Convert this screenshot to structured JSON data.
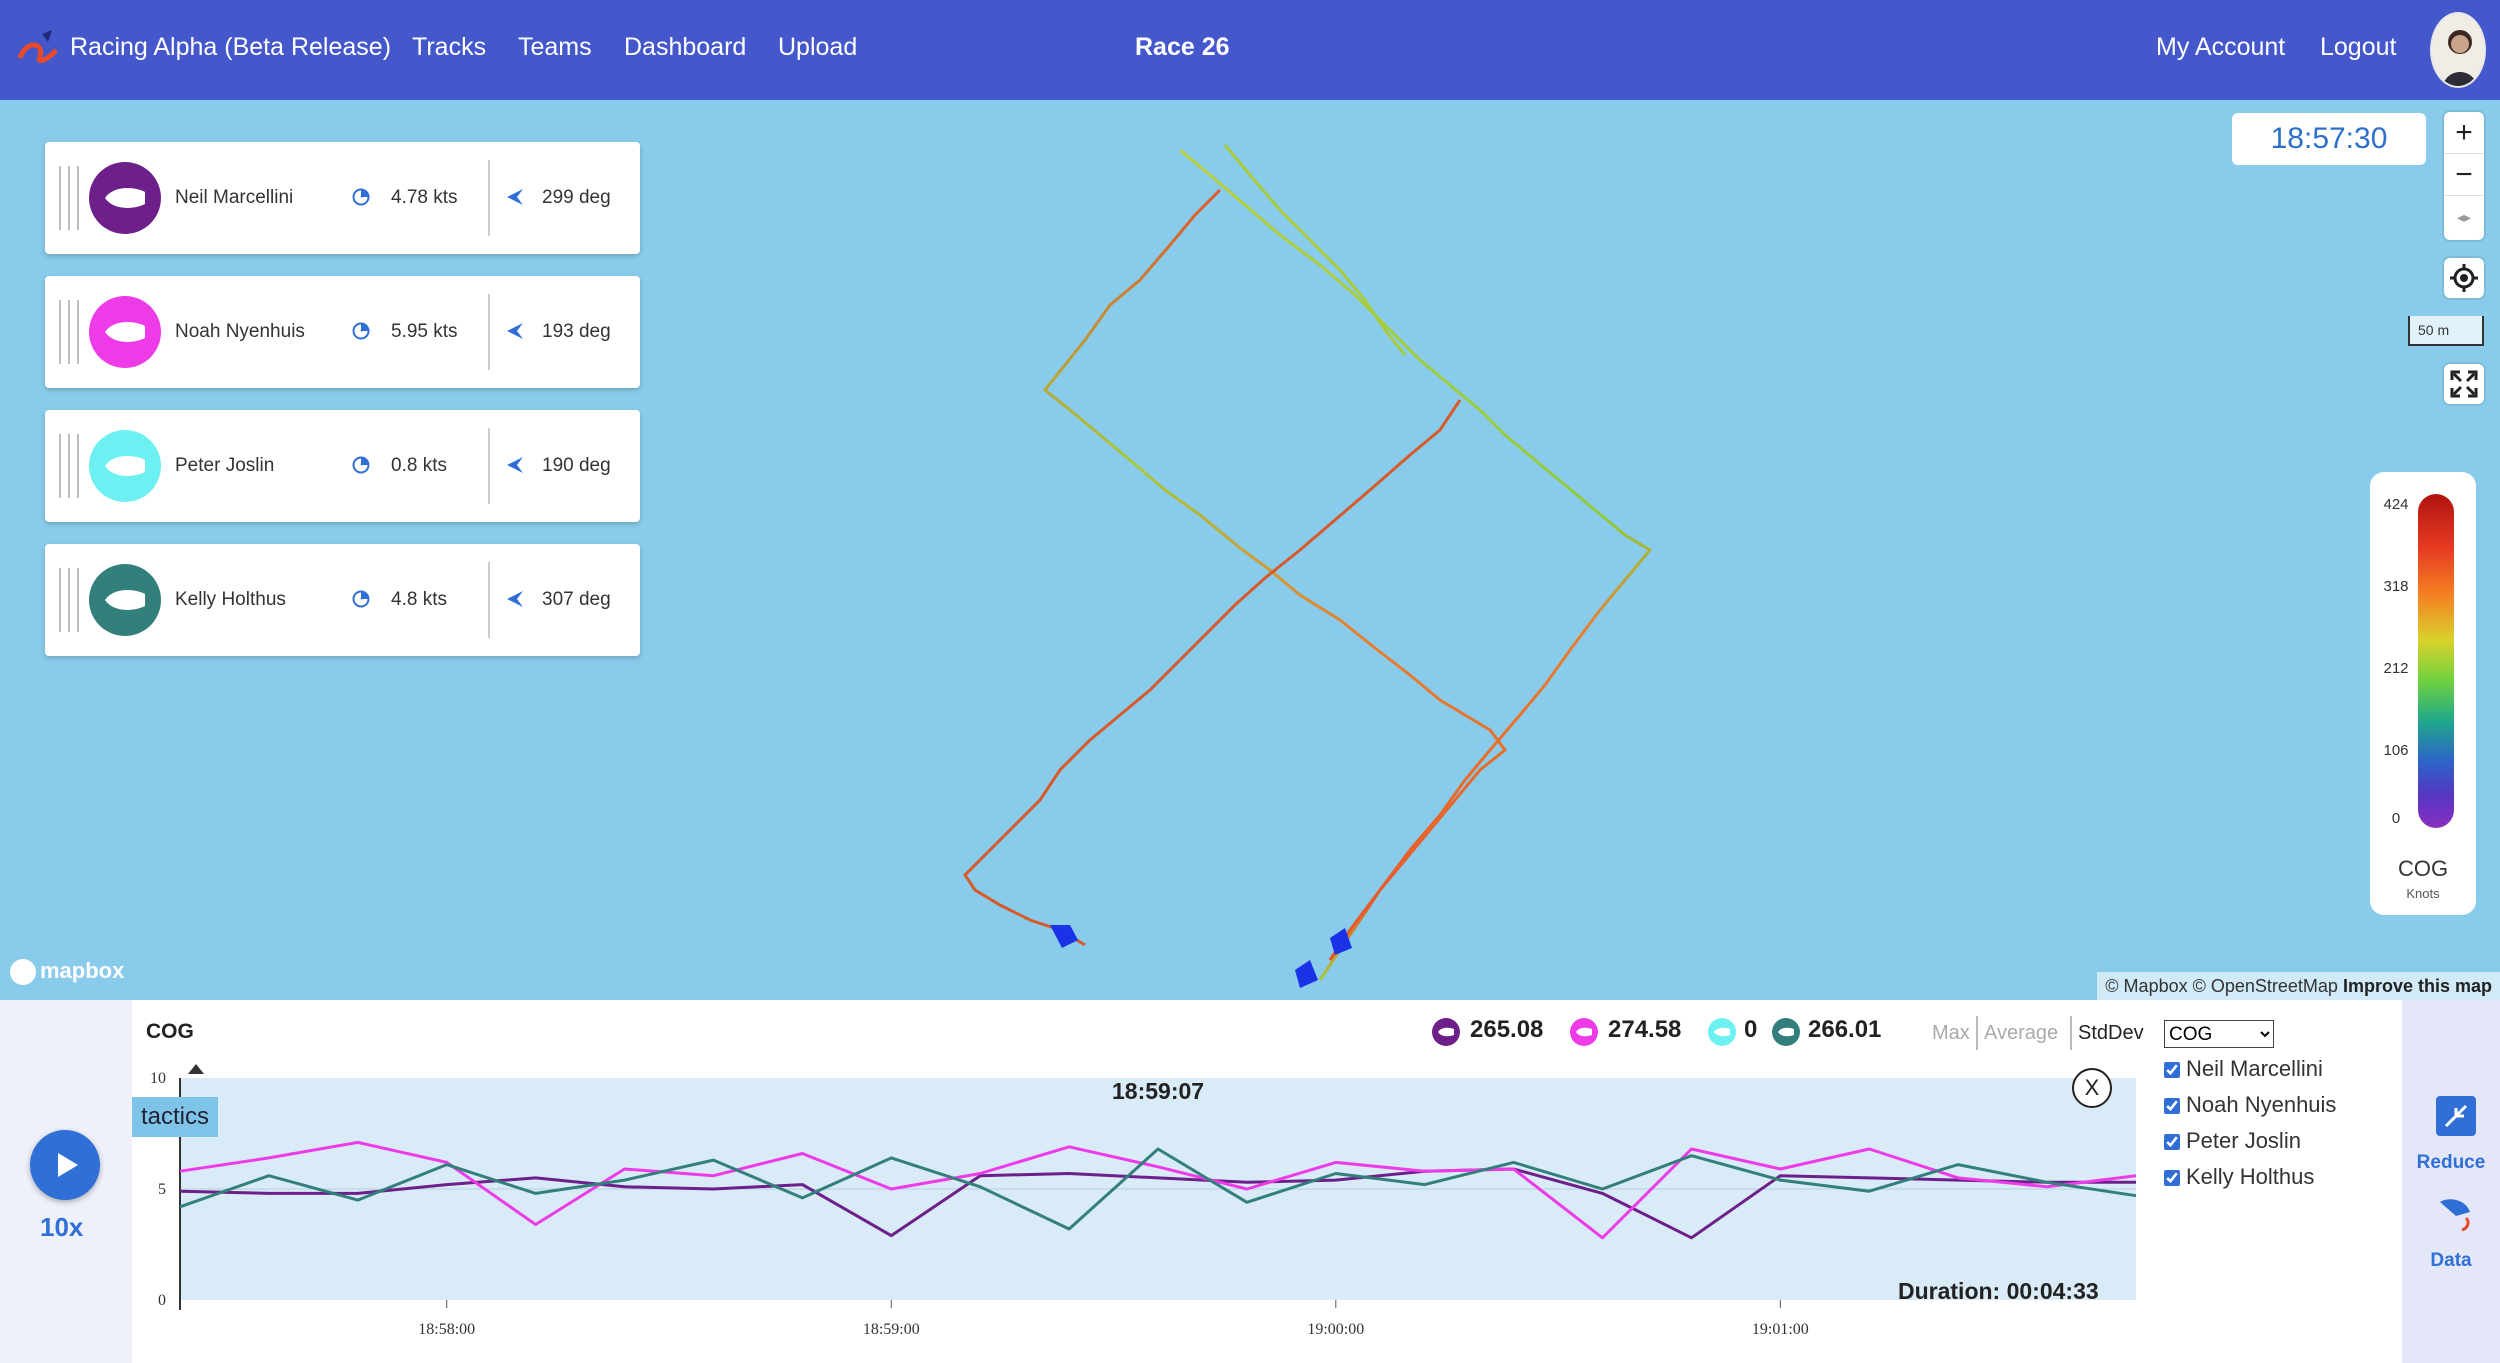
{
  "nav": {
    "brand": "Racing Alpha (Beta Release)",
    "links": [
      "Tracks",
      "Teams",
      "Dashboard",
      "Upload"
    ],
    "race_title": "Race 26",
    "account": "My Account",
    "logout": "Logout"
  },
  "sailors": [
    {
      "name": "Neil Marcellini",
      "speed": "4.78 kts",
      "heading": "299 deg",
      "color": "#6d1f8a"
    },
    {
      "name": "Noah Nyenhuis",
      "speed": "5.95 kts",
      "heading": "193 deg",
      "color": "#ee3be8"
    },
    {
      "name": "Peter Joslin",
      "speed": "0.8 kts",
      "heading": "190 deg",
      "color": "#6df0f2"
    },
    {
      "name": "Kelly Holthus",
      "speed": "4.8 kts",
      "heading": "307 deg",
      "color": "#337f7b"
    }
  ],
  "map": {
    "clock": "18:57:30",
    "zoom_in": "+",
    "zoom_out": "−",
    "compass": "◂▸",
    "scale": "50 m",
    "legend": {
      "ticks": [
        "424",
        "318",
        "212",
        "106",
        "0"
      ],
      "title": "COG",
      "unit": "Knots"
    },
    "mapbox": "mapbox",
    "attribution": "© Mapbox © OpenStreetMap",
    "improve": "Improve this map"
  },
  "playback": {
    "speed": "10x"
  },
  "chart": {
    "title": "COG",
    "stats": [
      "265.08",
      "274.58",
      "0",
      "266.01"
    ],
    "modes": {
      "max": "Max",
      "average": "Average",
      "stddev": "StdDev"
    },
    "metric": "COG",
    "series_names": [
      "Neil Marcellini",
      "Noah Nyenhuis",
      "Peter Joslin",
      "Kelly Holthus"
    ],
    "current_time": "18:59:07",
    "duration": "Duration: 00:04:33",
    "tactics": "tactics",
    "close": "X",
    "y_ticks": [
      "10",
      "5",
      "0"
    ],
    "x_ticks": [
      "18:58:00",
      "18:59:00",
      "19:00:00",
      "19:01:00"
    ]
  },
  "actions": {
    "reduce": "Reduce",
    "data": "Data"
  },
  "chart_data": {
    "type": "line",
    "xlabel": "",
    "ylabel": "",
    "ylim": [
      0,
      10
    ],
    "xlim": [
      "18:57:24",
      "18:59:07 +2:43"
    ],
    "x_ticks": [
      "18:58:00",
      "18:59:00",
      "19:00:00",
      "19:01:00"
    ],
    "x": [
      "18:57:24",
      "18:57:36",
      "18:57:48",
      "18:58:00",
      "18:58:12",
      "18:58:24",
      "18:58:36",
      "18:58:48",
      "18:59:00",
      "18:59:12",
      "18:59:24",
      "18:59:36",
      "18:59:48",
      "19:00:00",
      "19:00:12",
      "19:00:24",
      "19:00:36",
      "19:00:48",
      "19:01:00",
      "19:01:12",
      "19:01:24",
      "19:01:36",
      "19:01:48"
    ],
    "series": [
      {
        "name": "Neil Marcellini",
        "color": "#6d1f8a",
        "values": [
          4.9,
          4.8,
          4.8,
          5.2,
          5.5,
          5.1,
          5.0,
          5.2,
          2.9,
          5.6,
          5.7,
          5.5,
          5.3,
          5.4,
          5.8,
          5.9,
          4.8,
          2.8,
          5.6,
          5.5,
          5.4,
          5.3,
          5.3
        ]
      },
      {
        "name": "Noah Nyenhuis",
        "color": "#ee3be8",
        "values": [
          5.8,
          6.4,
          7.1,
          6.2,
          3.4,
          5.9,
          5.6,
          6.6,
          5.0,
          5.7,
          6.9,
          6.0,
          5.0,
          6.2,
          5.8,
          5.9,
          2.8,
          6.8,
          5.9,
          6.8,
          5.5,
          5.1,
          5.6
        ]
      },
      {
        "name": "Peter Joslin",
        "color": "#6df0f2",
        "values": [
          0,
          0,
          0,
          0,
          0,
          0,
          0,
          0,
          0,
          0,
          0,
          0,
          0,
          0,
          0,
          0,
          0,
          0,
          0,
          0,
          0,
          0,
          0
        ]
      },
      {
        "name": "Kelly Holthus",
        "color": "#337f7b",
        "values": [
          4.2,
          5.6,
          4.5,
          6.1,
          4.8,
          5.4,
          6.3,
          4.6,
          6.4,
          5.1,
          3.2,
          6.8,
          4.4,
          5.7,
          5.2,
          6.2,
          5.0,
          6.5,
          5.4,
          4.9,
          6.1,
          5.3,
          4.7
        ]
      }
    ]
  }
}
